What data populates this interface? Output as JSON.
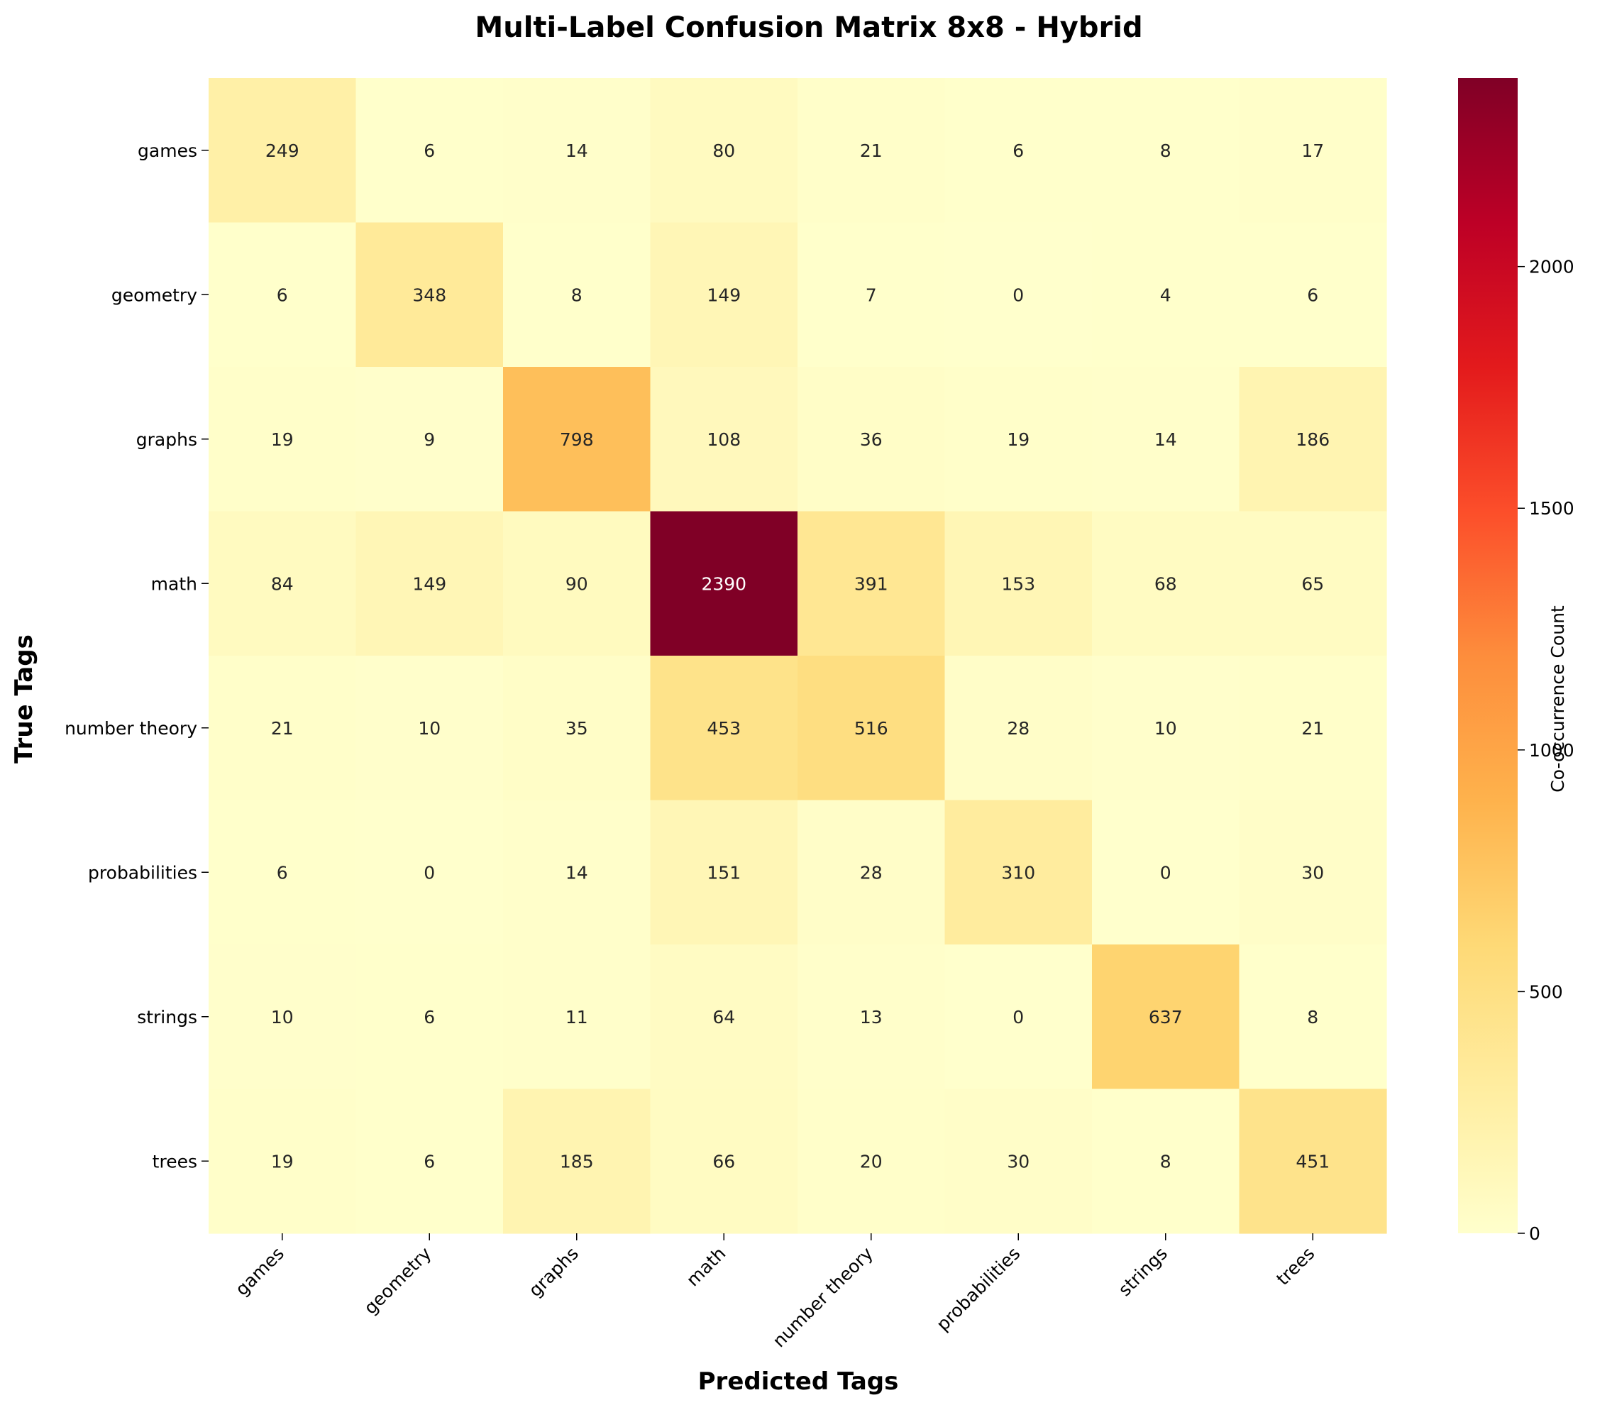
{
  "chart_data": {
    "type": "heatmap",
    "title": "Multi-Label Confusion Matrix 8x8 - Hybrid",
    "xlabel": "Predicted Tags",
    "ylabel": "True Tags",
    "x_categories": [
      "games",
      "geometry",
      "graphs",
      "math",
      "number theory",
      "probabilities",
      "strings",
      "trees"
    ],
    "y_categories": [
      "games",
      "geometry",
      "graphs",
      "math",
      "number theory",
      "probabilities",
      "strings",
      "trees"
    ],
    "values": [
      [
        249,
        6,
        14,
        80,
        21,
        6,
        8,
        17
      ],
      [
        6,
        348,
        8,
        149,
        7,
        0,
        4,
        6
      ],
      [
        19,
        9,
        798,
        108,
        36,
        19,
        14,
        186
      ],
      [
        84,
        149,
        90,
        2390,
        391,
        153,
        68,
        65
      ],
      [
        21,
        10,
        35,
        453,
        516,
        28,
        10,
        21
      ],
      [
        6,
        0,
        14,
        151,
        28,
        310,
        0,
        30
      ],
      [
        10,
        6,
        11,
        64,
        13,
        0,
        637,
        8
      ],
      [
        19,
        6,
        185,
        66,
        20,
        30,
        8,
        451
      ]
    ],
    "colorbar": {
      "label": "Co-occurrence Count",
      "colormap": "YlOrRd",
      "range": [
        0,
        2390
      ],
      "ticks": [
        0,
        500,
        1000,
        1500,
        2000
      ]
    },
    "colors": {
      "stops": [
        "#ffffcc",
        "#ffeda0",
        "#fed976",
        "#feb24c",
        "#fd8d3c",
        "#fc4e2a",
        "#e31a1c",
        "#bd0026",
        "#800026"
      ]
    }
  }
}
